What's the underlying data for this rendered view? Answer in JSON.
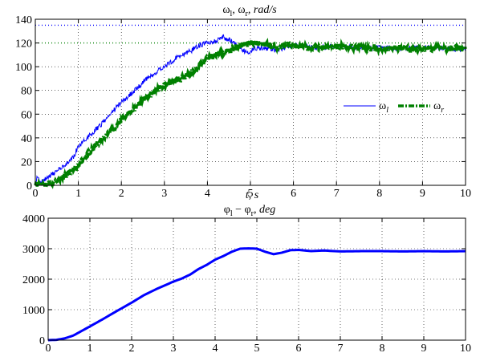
{
  "chart_data": [
    {
      "type": "line",
      "title": "ωl, ωr,  rad/s",
      "title_parts": {
        "w1": "ω",
        "sub1": "l",
        "sep": ", ",
        "w2": "ω",
        "sub2": "r",
        "rest": ",  rad/s"
      },
      "xlabel": "t, s",
      "ylabel": "",
      "xlim": [
        0,
        10
      ],
      "ylim": [
        0,
        140
      ],
      "xticks": [
        "0",
        "1",
        "2",
        "3",
        "4",
        "5",
        "6",
        "7",
        "8",
        "9",
        "10"
      ],
      "yticks": [
        "0",
        "20",
        "40",
        "60",
        "80",
        "100",
        "120",
        "140"
      ],
      "grid": true,
      "legend_position": "right",
      "reference_lines": [
        {
          "name": "",
          "y": 135,
          "color": "#0000ff",
          "style": "dotted"
        },
        {
          "name": "",
          "y": 120,
          "color": "#008000",
          "style": "dotted"
        }
      ],
      "series": [
        {
          "name": "ωl",
          "legend_symbol": "ω",
          "legend_sub": "l",
          "color": "#0000ff",
          "style": "solid",
          "x": [
            0,
            0.05,
            0.1,
            0.3,
            0.5,
            0.7,
            0.9,
            1.0,
            1.2,
            1.5,
            1.8,
            2.0,
            2.3,
            2.6,
            3.0,
            3.3,
            3.6,
            3.8,
            4.0,
            4.2,
            4.35,
            4.5,
            4.7,
            4.9,
            5.1,
            5.3,
            5.6,
            6.0,
            6.5,
            7.0,
            7.5,
            8.0,
            8.5,
            9.0,
            9.5,
            10.0
          ],
          "y": [
            0,
            8,
            2,
            7,
            12,
            17,
            25,
            33,
            40,
            50,
            62,
            70,
            80,
            90,
            100,
            108,
            113,
            118,
            120,
            122,
            125,
            123,
            118,
            112,
            115,
            116,
            114,
            118,
            116,
            117,
            116,
            116,
            115,
            116,
            115,
            115
          ]
        },
        {
          "name": "ωr",
          "legend_symbol": "ω",
          "legend_sub": "r",
          "color": "#008000",
          "style": "dashdot",
          "x": [
            0,
            0.3,
            0.5,
            0.7,
            0.9,
            1.1,
            1.3,
            1.6,
            2.0,
            2.4,
            2.8,
            3.2,
            3.5,
            3.8,
            4.0,
            4.2,
            4.5,
            4.7,
            4.9,
            5.1,
            5.3,
            5.6,
            6.0,
            6.5,
            7.0,
            7.5,
            8.0,
            8.5,
            9.0,
            9.5,
            10.0
          ],
          "y": [
            0,
            0,
            3,
            8,
            13,
            22,
            30,
            40,
            55,
            68,
            80,
            88,
            92,
            100,
            107,
            110,
            113,
            117,
            119,
            121,
            119,
            117,
            118,
            116,
            117,
            116,
            115,
            116,
            115,
            116,
            115
          ]
        }
      ]
    },
    {
      "type": "line",
      "title": "φl − φr,  deg",
      "title_parts": {
        "w1": "φ",
        "sub1": "l",
        "sep": " − ",
        "w2": "φ",
        "sub2": "r",
        "rest": ",  deg"
      },
      "xlabel": "",
      "ylabel": "",
      "xlim": [
        0,
        10
      ],
      "ylim": [
        0,
        4000
      ],
      "xticks": [
        "0",
        "1",
        "2",
        "3",
        "4",
        "5",
        "6",
        "7",
        "8",
        "9",
        "10"
      ],
      "yticks": [
        "0",
        "1000",
        "2000",
        "3000",
        "4000"
      ],
      "grid": true,
      "series": [
        {
          "name": "",
          "color": "#0000ff",
          "style": "solid",
          "x": [
            0,
            0.2,
            0.4,
            0.6,
            0.8,
            1.0,
            1.3,
            1.6,
            2.0,
            2.3,
            2.6,
            3.0,
            3.2,
            3.4,
            3.6,
            3.8,
            4.0,
            4.2,
            4.4,
            4.6,
            4.8,
            5.0,
            5.2,
            5.4,
            5.6,
            5.8,
            6.0,
            6.3,
            6.6,
            7.0,
            7.5,
            8.0,
            8.5,
            9.0,
            9.5,
            10.0
          ],
          "y": [
            0,
            10,
            60,
            150,
            300,
            450,
            680,
            920,
            1230,
            1480,
            1680,
            1920,
            2020,
            2150,
            2330,
            2470,
            2640,
            2760,
            2900,
            3000,
            3010,
            3000,
            2900,
            2820,
            2870,
            2950,
            2960,
            2920,
            2940,
            2910,
            2920,
            2920,
            2910,
            2920,
            2910,
            2920
          ]
        }
      ]
    }
  ]
}
